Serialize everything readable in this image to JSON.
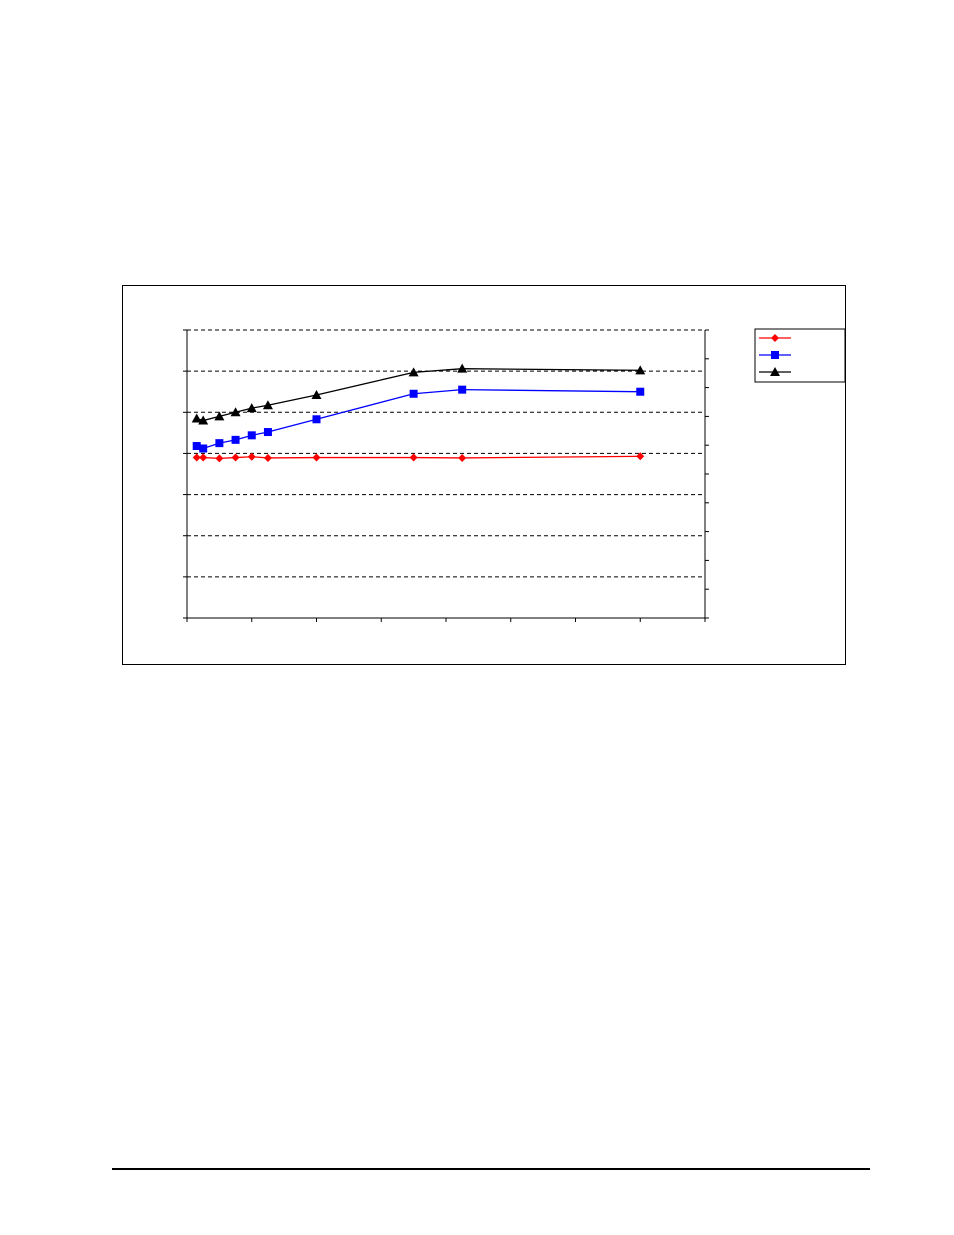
{
  "chart_data": {
    "type": "line",
    "title": "",
    "xlabel": "",
    "ylabel": "",
    "y2label": "",
    "xlim": [
      0,
      8
    ],
    "ylim": [
      0,
      7
    ],
    "y2lim": [
      0,
      10
    ],
    "grid": "horizontal-dashed",
    "legend": "right",
    "series": [
      {
        "name": "",
        "color": "#ff0000",
        "marker": "diamond",
        "x": [
          0.15,
          0.25,
          0.5,
          0.75,
          1.0,
          1.25,
          2.0,
          3.5,
          4.25,
          7.0
        ],
        "y": [
          3.9,
          3.9,
          3.88,
          3.9,
          3.92,
          3.89,
          3.9,
          3.9,
          3.89,
          3.93
        ]
      },
      {
        "name": "",
        "color": "#0000ff",
        "marker": "square",
        "x": [
          0.15,
          0.25,
          0.5,
          0.75,
          1.0,
          1.25,
          2.0,
          3.5,
          4.25,
          7.0
        ],
        "y": [
          4.18,
          4.12,
          4.25,
          4.33,
          4.44,
          4.52,
          4.83,
          5.45,
          5.55,
          5.5
        ]
      },
      {
        "name": "",
        "color": "#000000",
        "marker": "triangle",
        "x": [
          0.15,
          0.25,
          0.5,
          0.75,
          1.0,
          1.25,
          2.0,
          3.5,
          4.25,
          7.0
        ],
        "y": [
          4.85,
          4.8,
          4.9,
          5.0,
          5.1,
          5.17,
          5.42,
          5.97,
          6.06,
          6.02
        ]
      }
    ]
  }
}
